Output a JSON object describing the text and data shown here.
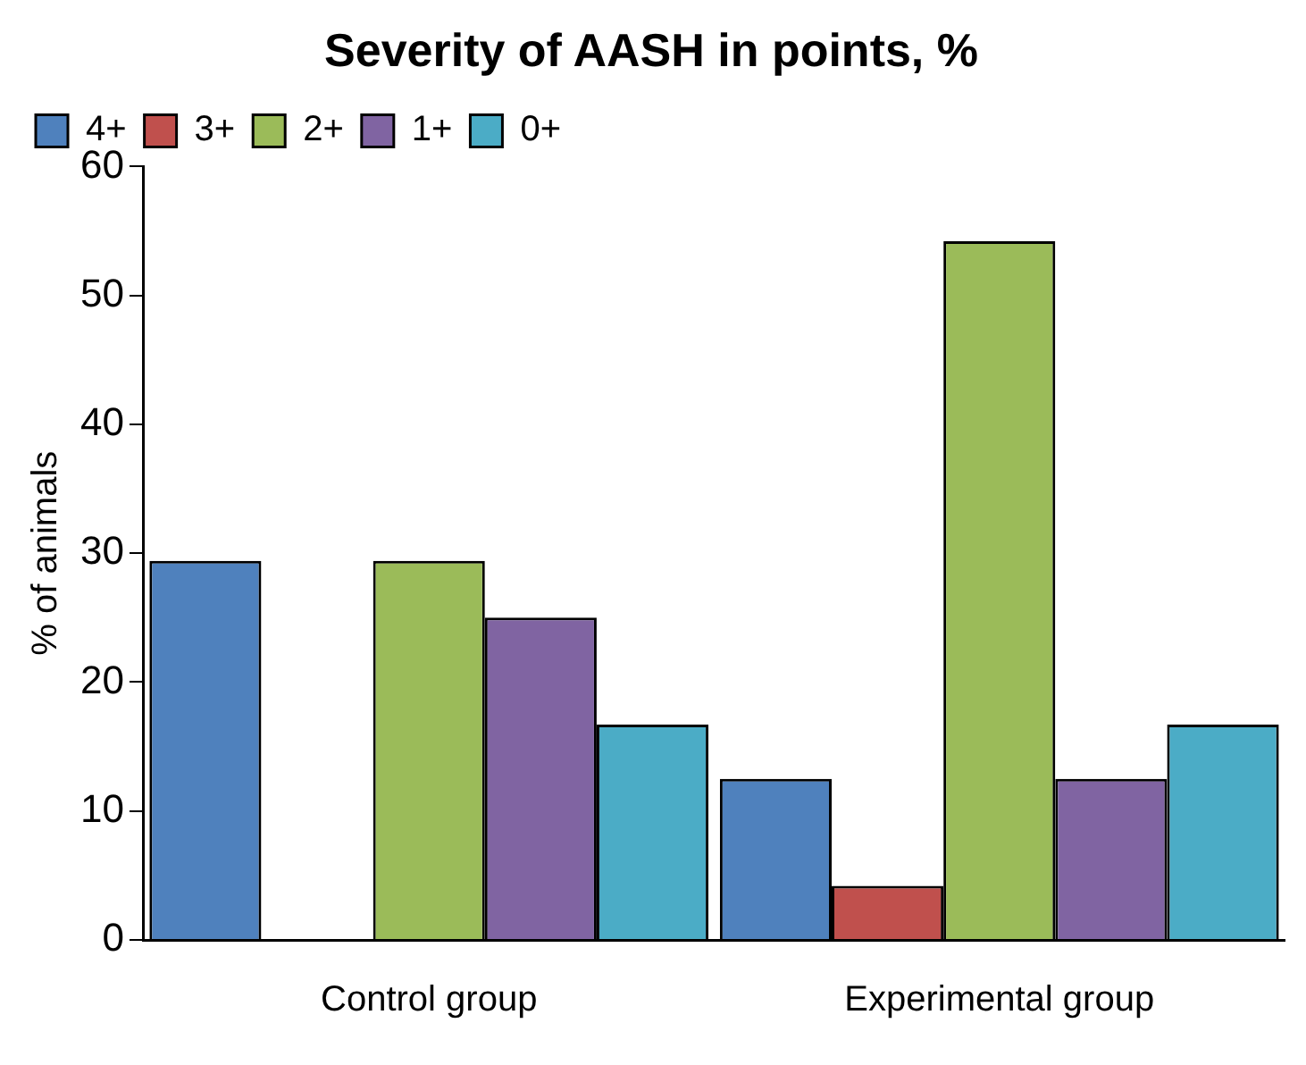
{
  "chart_data": {
    "type": "bar",
    "title": "Severity of AASH in points, %",
    "ylabel": "% of animals",
    "categories": [
      "Control group",
      "Experimental group"
    ],
    "series": [
      {
        "name": "4+",
        "color": "#4f81bd",
        "values": [
          29.4,
          12.5
        ]
      },
      {
        "name": "3+",
        "color": "#c0504d",
        "values": [
          0,
          4.2
        ]
      },
      {
        "name": "2+",
        "color": "#9bbb59",
        "values": [
          29.4,
          54.2
        ]
      },
      {
        "name": "1+",
        "color": "#8064a2",
        "values": [
          25,
          12.5
        ]
      },
      {
        "name": "0+",
        "color": "#4bacc6",
        "values": [
          16.7,
          16.7
        ]
      }
    ],
    "ylim": [
      0,
      60
    ],
    "yticks": [
      0,
      10,
      20,
      30,
      40,
      50,
      60
    ],
    "grid": false,
    "legend": "top left"
  }
}
